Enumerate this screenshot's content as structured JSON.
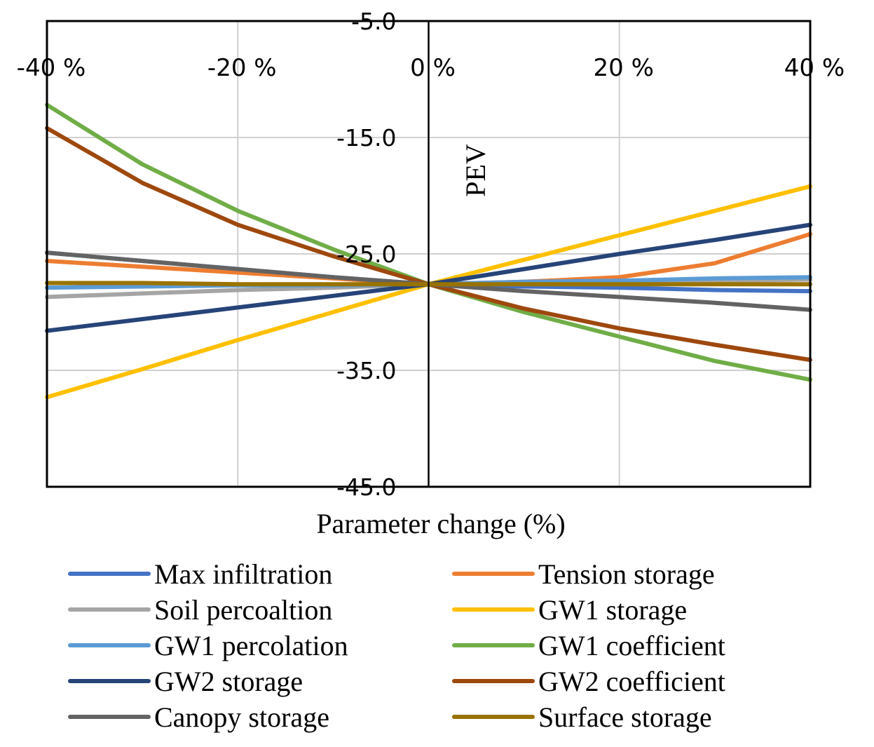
{
  "chart_data": {
    "type": "line",
    "title": "",
    "xlabel": "Parameter change (%)",
    "ylabel": "PEV",
    "x": [
      -40,
      -30,
      -20,
      -10,
      0,
      10,
      20,
      30,
      40
    ],
    "xlim": [
      -40,
      40
    ],
    "ylim": [
      -45,
      -5
    ],
    "x_ticks": [
      -40,
      -20,
      0,
      20,
      40
    ],
    "x_tick_labels": [
      "-40 %",
      "-20 %",
      "0 %",
      "20 %",
      "40 %"
    ],
    "y_ticks": [
      -5,
      -15,
      -25,
      -35,
      -45
    ],
    "y_tick_labels": [
      "-5.0",
      "-15.0",
      "-25.0",
      "-35.0",
      "-45.0"
    ],
    "grid": true,
    "legend_position": "bottom",
    "series": [
      {
        "name": "Max infiltration",
        "color": "#4472C4",
        "values": [
          -24.9,
          -25.6,
          -26.3,
          -27.0,
          -27.6,
          -27.8,
          -27.9,
          -28.1,
          -28.2
        ]
      },
      {
        "name": "Tension storage",
        "color": "#ED7D31",
        "values": [
          -25.6,
          -26.1,
          -26.6,
          -27.1,
          -27.6,
          -27.4,
          -27.0,
          -25.8,
          -23.3
        ]
      },
      {
        "name": "Soil percoaltion",
        "color": "#A5A5A5",
        "values": [
          -28.7,
          -28.4,
          -28.1,
          -27.9,
          -27.6,
          -27.5,
          -27.4,
          -27.3,
          -27.2
        ]
      },
      {
        "name": "GW1 storage",
        "color": "#FFC000",
        "values": [
          -37.3,
          -34.9,
          -32.4,
          -30.0,
          -27.6,
          -25.5,
          -23.4,
          -21.3,
          -19.2
        ]
      },
      {
        "name": "GW1 percolation",
        "color": "#5B9BD5",
        "values": [
          -27.9,
          -27.8,
          -27.7,
          -27.7,
          -27.6,
          -27.4,
          -27.3,
          -27.1,
          -27.0
        ]
      },
      {
        "name": "GW1 coefficient",
        "color": "#70AD47",
        "values": [
          -12.2,
          -17.3,
          -21.3,
          -24.6,
          -27.6,
          -30.0,
          -32.1,
          -34.2,
          -35.8
        ]
      },
      {
        "name": "GW2 storage",
        "color": "#264478",
        "values": [
          -31.6,
          -30.6,
          -29.6,
          -28.6,
          -27.6,
          -26.3,
          -25.0,
          -23.8,
          -22.5
        ]
      },
      {
        "name": "GW2 coefficient",
        "color": "#9E480E",
        "values": [
          -14.2,
          -18.9,
          -22.5,
          -25.2,
          -27.6,
          -29.7,
          -31.4,
          -32.8,
          -34.1
        ]
      },
      {
        "name": "Canopy storage",
        "color": "#636363",
        "values": [
          -24.9,
          -25.6,
          -26.3,
          -27.0,
          -27.6,
          -28.2,
          -28.7,
          -29.2,
          -29.8
        ]
      },
      {
        "name": "Surface storage",
        "color": "#997300",
        "values": [
          -27.5,
          -27.5,
          -27.6,
          -27.6,
          -27.6,
          -27.6,
          -27.6,
          -27.6,
          -27.6
        ]
      }
    ]
  }
}
